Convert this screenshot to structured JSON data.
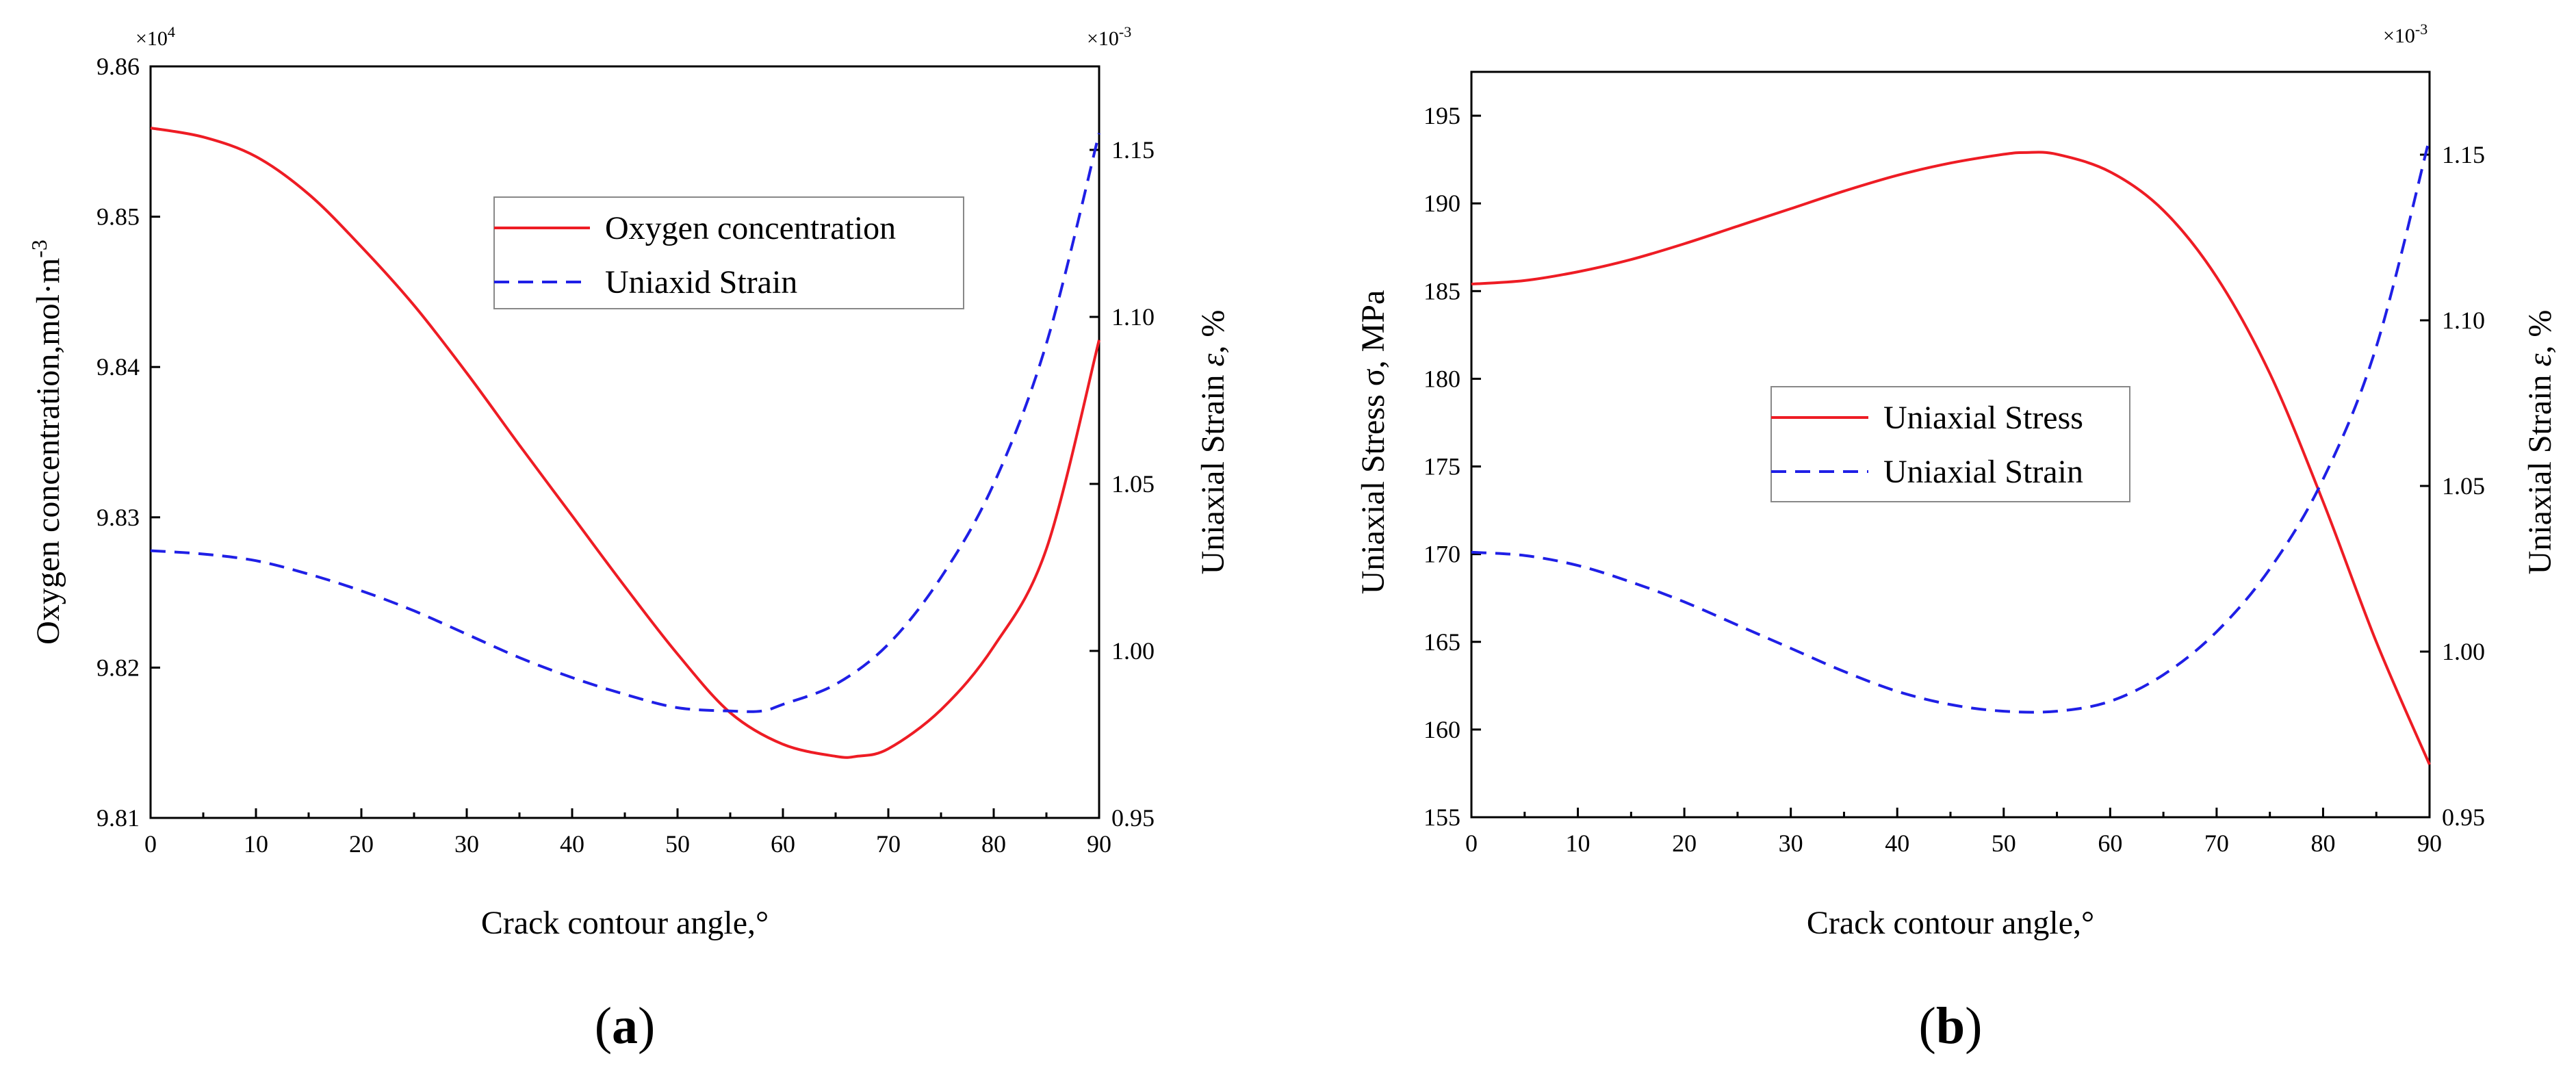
{
  "chart_data": [
    {
      "type": "line",
      "panel_label": "a",
      "xlabel": "Crack contour angle,°",
      "x_ticks": [
        0,
        10,
        20,
        30,
        40,
        50,
        60,
        70,
        80,
        90
      ],
      "xlim": [
        0,
        90
      ],
      "ylabel_left": "Oxygen concentration,mol·m",
      "ylabel_left_sup": "-3",
      "left_multiplier_base": "×10",
      "left_multiplier_exp": "4",
      "ylim_left": [
        9.81,
        9.86
      ],
      "y_ticks_left": [
        "9.81",
        "9.82",
        "9.83",
        "9.84",
        "9.85",
        "9.86"
      ],
      "ylabel_right": "Uniaxial Strain ",
      "ylabel_right_symbol": "ε",
      "ylabel_right_unit": ", %",
      "right_multiplier_base": "×10",
      "right_multiplier_exp": "-3",
      "ylim_right": [
        0.95,
        1.175
      ],
      "y_ticks_right": [
        "0.95",
        "1.00",
        "1.05",
        "1.10",
        "1.15"
      ],
      "legend_position": "upper-center",
      "series": [
        {
          "name": "Oxygen concentration",
          "axis": "left",
          "color": "#ee1c24",
          "style": "solid",
          "x": [
            0,
            5,
            10,
            15,
            20,
            25,
            30,
            35,
            40,
            45,
            50,
            55,
            60,
            65,
            67,
            70,
            75,
            80,
            85,
            90
          ],
          "y": [
            9.8559,
            9.8553,
            9.854,
            9.8515,
            9.848,
            9.8441,
            9.8396,
            9.8348,
            9.8301,
            9.8254,
            9.8209,
            9.817,
            9.8149,
            9.8141,
            9.8141,
            9.8146,
            9.8172,
            9.8214,
            9.8279,
            9.8418
          ]
        },
        {
          "name": "Uniaxid Strain",
          "axis": "right",
          "color": "#1f1fe6",
          "style": "dashed",
          "x": [
            0,
            5,
            10,
            15,
            20,
            25,
            30,
            35,
            40,
            45,
            50,
            55,
            58,
            60,
            65,
            70,
            75,
            80,
            85,
            90
          ],
          "y": [
            1.03,
            1.029,
            1.027,
            1.023,
            1.018,
            1.012,
            1.005,
            0.998,
            0.992,
            0.987,
            0.983,
            0.982,
            0.982,
            0.984,
            0.99,
            1.002,
            1.022,
            1.05,
            1.092,
            1.155
          ]
        }
      ]
    },
    {
      "type": "line",
      "panel_label": "b",
      "xlabel": "Crack contour angle,°",
      "x_ticks": [
        0,
        10,
        20,
        30,
        40,
        50,
        60,
        70,
        80,
        90
      ],
      "xlim": [
        0,
        90
      ],
      "ylabel_left": "Uniaxial Stress σ, MPa",
      "ylim_left": [
        155,
        197.5
      ],
      "y_ticks_left": [
        "155",
        "160",
        "165",
        "170",
        "175",
        "180",
        "185",
        "190",
        "195"
      ],
      "ylabel_right": "Uniaxial Strain ",
      "ylabel_right_symbol": "ε",
      "ylabel_right_unit": ", %",
      "right_multiplier_base": "×10",
      "right_multiplier_exp": "-3",
      "ylim_right": [
        0.95,
        1.175
      ],
      "y_ticks_right": [
        "0.95",
        "1.00",
        "1.05",
        "1.10",
        "1.15"
      ],
      "legend_position": "center",
      "series": [
        {
          "name": "Uniaxial Stress",
          "axis": "left",
          "color": "#ee1c24",
          "style": "solid",
          "x": [
            0,
            5,
            10,
            15,
            20,
            25,
            30,
            35,
            40,
            45,
            50,
            52,
            55,
            60,
            65,
            70,
            75,
            80,
            85,
            90
          ],
          "y": [
            185.4,
            185.6,
            186.1,
            186.8,
            187.7,
            188.7,
            189.7,
            190.7,
            191.6,
            192.3,
            192.8,
            192.9,
            192.8,
            191.8,
            189.6,
            185.8,
            180.3,
            173.0,
            165.0,
            158.0
          ]
        },
        {
          "name": "Uniaxial Strain",
          "axis": "right",
          "color": "#1f1fe6",
          "style": "dashed",
          "x": [
            0,
            5,
            10,
            15,
            20,
            25,
            30,
            35,
            40,
            45,
            50,
            55,
            60,
            65,
            70,
            75,
            80,
            85,
            90
          ],
          "y": [
            1.03,
            1.029,
            1.026,
            1.021,
            1.015,
            1.008,
            1.001,
            0.994,
            0.988,
            0.984,
            0.982,
            0.982,
            0.985,
            0.993,
            1.006,
            1.025,
            1.052,
            1.092,
            1.155
          ]
        }
      ]
    }
  ]
}
